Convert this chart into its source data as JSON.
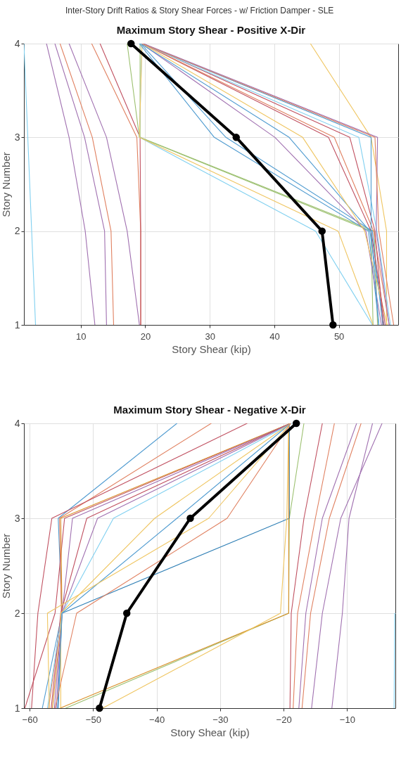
{
  "chart_data": [
    {
      "type": "line",
      "title": "Maximum Story Shear - Positive X-Dir",
      "xlabel": "Story Shear (kip)",
      "ylabel": "Story Number",
      "annotations": [
        "Inter-Story Drift Ratios & Story Shear Forces - w/ Friction Damper - SLE"
      ],
      "xlim": [
        1.2,
        59.2
      ],
      "xticks": [
        10,
        20,
        30,
        40,
        50
      ],
      "ylim": [
        1,
        4
      ],
      "yticks": [
        1,
        2,
        3,
        4
      ],
      "grid": true,
      "series": [
        {
          "color": "#80d0f0",
          "x": [
            3.0,
            2.4,
            1.8,
            1.2
          ],
          "values": [
            1,
            2,
            3,
            4
          ]
        },
        {
          "color": "#a070b0",
          "x": [
            12.2,
            10.7,
            8.2,
            4.7
          ],
          "values": [
            1,
            2,
            3,
            4
          ]
        },
        {
          "color": "#a070b0",
          "x": [
            14.0,
            13.7,
            10.6,
            6.0
          ],
          "values": [
            1,
            2,
            3,
            4
          ]
        },
        {
          "color": "#e08060",
          "x": [
            15.1,
            14.7,
            11.8,
            6.8
          ],
          "values": [
            1,
            2,
            3,
            4
          ]
        },
        {
          "color": "#a070b0",
          "x": [
            19.1,
            17.2,
            14.0,
            8.2
          ],
          "values": [
            1,
            2,
            3,
            4
          ]
        },
        {
          "color": "#e08060",
          "x": [
            19.3,
            19.3,
            18.7,
            11.7
          ],
          "values": [
            1,
            2,
            3,
            4
          ]
        },
        {
          "color": "#c05060",
          "x": [
            19.3,
            19.3,
            19.2,
            13.0
          ],
          "values": [
            1,
            2,
            3,
            4
          ]
        },
        {
          "color": "#9cc070",
          "x": [
            55.3,
            55.0,
            19.1,
            17.2
          ],
          "values": [
            1,
            2,
            3,
            4
          ]
        },
        {
          "color": "#9cc070",
          "x": [
            56.0,
            55.5,
            19.2,
            19.2
          ],
          "values": [
            1,
            2,
            3,
            4
          ]
        },
        {
          "color": "#80d0f0",
          "x": [
            55.2,
            46.4,
            19.1,
            19.5
          ],
          "values": [
            1,
            2,
            3,
            4
          ]
        },
        {
          "color": "#efc560",
          "x": [
            55.3,
            49.9,
            19.1,
            19.5
          ],
          "values": [
            1,
            2,
            3,
            4
          ]
        },
        {
          "color": "#efc560",
          "x": [
            57.4,
            57.4,
            55.0,
            45.6
          ],
          "values": [
            1,
            2,
            3,
            4
          ]
        },
        {
          "color": "#4f9bd0",
          "x": [
            56.2,
            54.6,
            30.7,
            19.1
          ],
          "values": [
            1,
            2,
            3,
            4
          ]
        },
        {
          "color": "#4f9bd0",
          "x": [
            56.8,
            55.2,
            32.5,
            19.3
          ],
          "values": [
            1,
            2,
            3,
            4
          ]
        },
        {
          "color": "#a070b0",
          "x": [
            56.6,
            54.2,
            40.1,
            19.4
          ],
          "values": [
            1,
            2,
            3,
            4
          ]
        },
        {
          "color": "#4f9bd0",
          "x": [
            57.0,
            54.8,
            42.3,
            19.3
          ],
          "values": [
            1,
            2,
            3,
            4
          ]
        },
        {
          "color": "#efc560",
          "x": [
            57.5,
            54.0,
            44.4,
            19.5
          ],
          "values": [
            1,
            2,
            3,
            4
          ]
        },
        {
          "color": "#c05060",
          "x": [
            57.2,
            55.0,
            48.4,
            19.6
          ],
          "values": [
            1,
            2,
            3,
            4
          ]
        },
        {
          "color": "#e08060",
          "x": [
            57.8,
            55.4,
            49.3,
            19.6
          ],
          "values": [
            1,
            2,
            3,
            4
          ]
        },
        {
          "color": "#c05060",
          "x": [
            56.9,
            55.6,
            51.7,
            19.7
          ],
          "values": [
            1,
            2,
            3,
            4
          ]
        },
        {
          "color": "#80d0f0",
          "x": [
            58.0,
            55.9,
            53.1,
            19.5
          ],
          "values": [
            1,
            2,
            3,
            4
          ]
        },
        {
          "color": "#4f9bd0",
          "x": [
            56.2,
            55.0,
            55.0,
            19.6
          ],
          "values": [
            1,
            2,
            3,
            4
          ]
        },
        {
          "color": "#a070b0",
          "x": [
            57.8,
            55.8,
            56.0,
            19.7
          ],
          "values": [
            1,
            2,
            3,
            4
          ]
        },
        {
          "color": "#e08060",
          "x": [
            58.5,
            56.2,
            55.6,
            19.5
          ],
          "values": [
            1,
            2,
            3,
            4
          ]
        },
        {
          "color": "#000000",
          "marker": "circle",
          "x": [
            49.1,
            47.4,
            34.1,
            17.8
          ],
          "values": [
            1,
            2,
            3,
            4
          ]
        }
      ]
    },
    {
      "type": "line",
      "title": "Maximum Story Shear - Negative X-Dir",
      "xlabel": "Story Shear (kip)",
      "ylabel": "Story Number",
      "xlim": [
        -60.9,
        -2.4
      ],
      "xticks": [
        -60,
        -50,
        -40,
        -30,
        -20,
        -10
      ],
      "ylim": [
        1,
        4
      ],
      "yticks": [
        1,
        2,
        3,
        4
      ],
      "grid": true,
      "series": [
        {
          "color": "#80d0f0",
          "x": [
            -2.6,
            -2.5
          ],
          "values": [
            1,
            2
          ]
        },
        {
          "color": "#a070b0",
          "x": [
            -12.4,
            -10.75,
            -9.7,
            -6.0
          ],
          "values": [
            1,
            2,
            3,
            4
          ]
        },
        {
          "color": "#a070b0",
          "x": [
            -15.6,
            -13.9,
            -11.0,
            -4.5
          ],
          "values": [
            1,
            2,
            3,
            4
          ]
        },
        {
          "color": "#a070b0",
          "x": [
            -17.6,
            -16.5,
            -13.9,
            -8.5
          ],
          "values": [
            1,
            2,
            3,
            4
          ]
        },
        {
          "color": "#e08060",
          "x": [
            -17.1,
            -15.75,
            -12.8,
            -7.8
          ],
          "values": [
            1,
            2,
            3,
            4
          ]
        },
        {
          "color": "#c05060",
          "x": [
            -19.0,
            -18.8,
            -16.8,
            -13.9
          ],
          "values": [
            1,
            2,
            3,
            4
          ]
        },
        {
          "color": "#e08060",
          "x": [
            -18.5,
            -17.8,
            -15.0,
            -12.0
          ],
          "values": [
            1,
            2,
            3,
            4
          ]
        },
        {
          "color": "#9cc070",
          "x": [
            -54.3,
            -19.2,
            -19.1,
            -16.8
          ],
          "values": [
            1,
            2,
            3,
            4
          ]
        },
        {
          "color": "#2f7fb5",
          "x": [
            -55.5,
            -54.9,
            -19.1,
            -19.1
          ],
          "values": [
            1,
            2,
            3,
            4
          ]
        },
        {
          "color": "#d9902a",
          "x": [
            -55.2,
            -19.2,
            -19.2,
            -19.2
          ],
          "values": [
            1,
            2,
            3,
            4
          ]
        },
        {
          "color": "#efc560",
          "x": [
            -48.5,
            -20.5,
            -19.5,
            -19.2
          ],
          "values": [
            1,
            2,
            3,
            4
          ]
        },
        {
          "color": "#4f9bd0",
          "x": [
            -58.0,
            -54.9,
            -55.5,
            -36.8
          ],
          "values": [
            1,
            2,
            3,
            4
          ]
        },
        {
          "color": "#e08060",
          "x": [
            -57.0,
            -55.0,
            -55.3,
            -31.4
          ],
          "values": [
            1,
            2,
            3,
            4
          ]
        },
        {
          "color": "#c05060",
          "x": [
            -59.7,
            -58.7,
            -56.5,
            -25.75
          ],
          "values": [
            1,
            2,
            3,
            4
          ]
        },
        {
          "color": "#c05060",
          "x": [
            -60.75,
            -56.0,
            -54.5,
            -18.9
          ],
          "values": [
            1,
            2,
            3,
            4
          ]
        },
        {
          "color": "#d9902a",
          "x": [
            -56.4,
            -54.9,
            -55.1,
            -18.9
          ],
          "values": [
            1,
            2,
            3,
            4
          ]
        },
        {
          "color": "#a070b0",
          "x": [
            -55.8,
            -54.9,
            -53.25,
            -18.8
          ],
          "values": [
            1,
            2,
            3,
            4
          ]
        },
        {
          "color": "#c05060",
          "x": [
            -56.6,
            -55.1,
            -51.0,
            -18.9
          ],
          "values": [
            1,
            2,
            3,
            4
          ]
        },
        {
          "color": "#a070b0",
          "x": [
            -56.1,
            -54.9,
            -49.3,
            -18.8
          ],
          "values": [
            1,
            2,
            3,
            4
          ]
        },
        {
          "color": "#80d0f0",
          "x": [
            -57.2,
            -54.9,
            -46.8,
            -18.7
          ],
          "values": [
            1,
            2,
            3,
            4
          ]
        },
        {
          "color": "#efc560",
          "x": [
            -55.1,
            -55.1,
            -40.3,
            -18.9
          ],
          "values": [
            1,
            2,
            3,
            4
          ]
        },
        {
          "color": "#4f9bd0",
          "x": [
            -55.6,
            -54.9,
            -36.8,
            -18.9
          ],
          "values": [
            1,
            2,
            3,
            4
          ]
        },
        {
          "color": "#efc560",
          "x": [
            -56.9,
            -57.2,
            -31.8,
            -18.9
          ],
          "values": [
            1,
            2,
            3,
            4
          ]
        },
        {
          "color": "#e08060",
          "x": [
            -56.0,
            -52.6,
            -28.9,
            -18.9
          ],
          "values": [
            1,
            2,
            3,
            4
          ]
        },
        {
          "color": "#000000",
          "marker": "circle",
          "x": [
            -49.0,
            -44.7,
            -34.7,
            -18.0
          ],
          "values": [
            1,
            2,
            3,
            4
          ]
        }
      ]
    }
  ]
}
